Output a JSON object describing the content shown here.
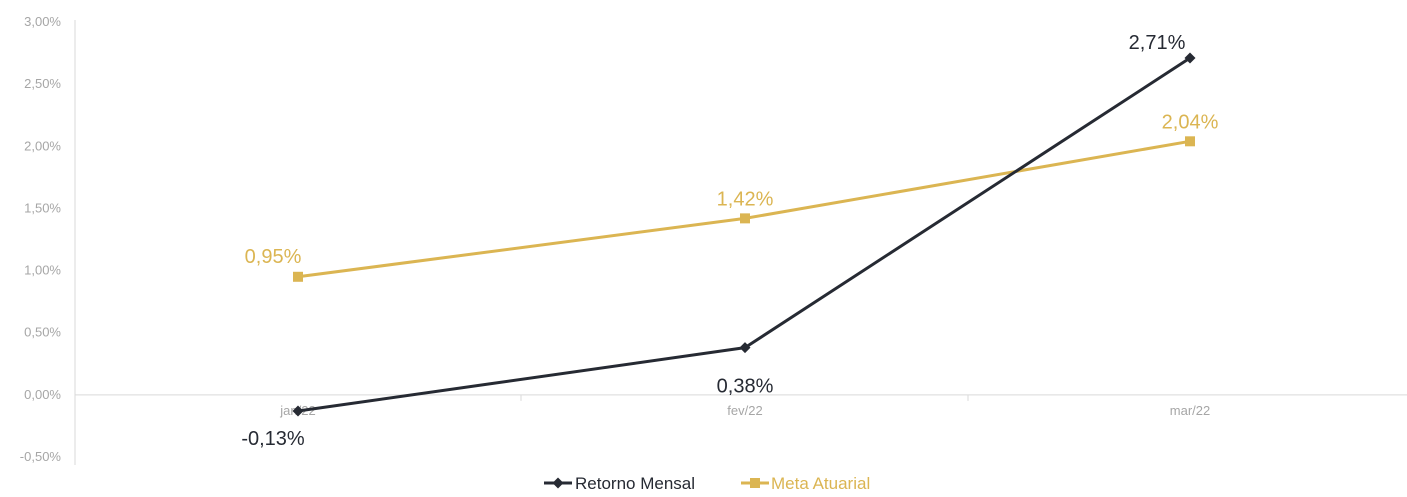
{
  "chart_data": {
    "type": "line",
    "categories": [
      "jan/22",
      "fev/22",
      "mar/22"
    ],
    "series": [
      {
        "name": "Retorno Mensal",
        "values": [
          -0.13,
          0.38,
          2.71
        ],
        "labels": [
          "-0,13%",
          "0,38%",
          "2,71%"
        ],
        "color": "#262a33",
        "marker": "diamond"
      },
      {
        "name": "Meta Atuarial",
        "values": [
          0.95,
          1.42,
          2.04
        ],
        "labels": [
          "0,95%",
          "1,42%",
          "2,04%"
        ],
        "color": "#dbb552",
        "marker": "square"
      }
    ],
    "ylim": [
      -0.5,
      3.0
    ],
    "yticks": [
      -0.5,
      0.0,
      0.5,
      1.0,
      1.5,
      2.0,
      2.5,
      3.0
    ],
    "ytick_labels": [
      "-0,50%",
      "0,00%",
      "0,50%",
      "1,00%",
      "1,50%",
      "2,00%",
      "2,50%",
      "3,00%"
    ],
    "title": "",
    "xlabel": "",
    "ylabel": "",
    "grid": false,
    "legend_position": "bottom-center"
  }
}
